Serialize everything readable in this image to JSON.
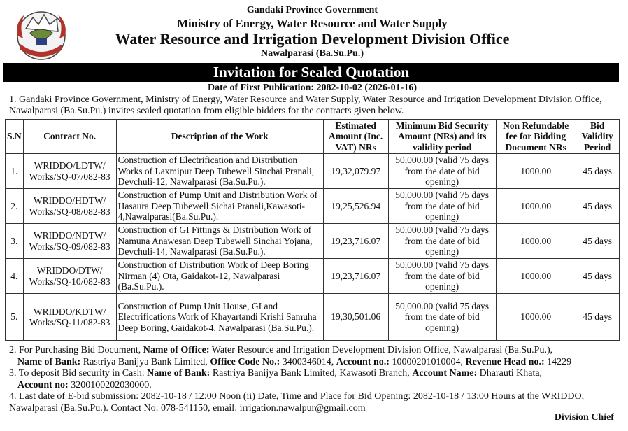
{
  "header": {
    "gov": "Gandaki Province Government",
    "ministry": "Ministry of Energy, Water Resource and Water Supply",
    "office": "Water Resource and Irrigation Development Division Office",
    "location": "Nawalparasi (Ba.Su.Pu.)"
  },
  "banner": "Invitation for Sealed Quotation",
  "publication": "Date of First Publication: 2082-10-02 (2026-01-16)",
  "intro": "1. Gandaki Province Government, Ministry of Energy, Water Resource and Water Supply, Water Resource and Irrigation Development Division Office, Nawalparasi (Ba.Su.Pu.) invites sealed quotation from eligible bidders for the contracts given below.",
  "table": {
    "headers": {
      "sn": "S.N",
      "contract": "Contract No.",
      "description": "Description of the Work",
      "amount": "Estimated Amount (Inc. VAT) NRs",
      "security": "Minimum Bid Security Amount (NRs) and its validity period",
      "fee": "Non Refundable fee for Bidding Document NRs",
      "validity": "Bid Validity Period"
    },
    "rows": [
      {
        "sn": "1.",
        "contract": "WRIDDO/LDTW/ Works/SQ-07/082-83",
        "description": "Construction of Electrification and Distribution Works of Laxmipur Deep Tubewell Sinchai Pranali, Devchuli-12, Nawalparasi (Ba.Su.Pu.).",
        "amount": "19,32,079.97",
        "security": "50,000.00 (valid 75 days from the date of bid opening)",
        "fee": "1000.00",
        "validity": "45 days"
      },
      {
        "sn": "2.",
        "contract": "WRIDDO/HDTW/ Works/SQ-08/082-83",
        "description": "Construction of Pump Unit and Distribution Work of Hasaura Deep Tubewell Sichai Pranali,Kawasoti-4,Nawalparasi(Ba.Su.Pu.).",
        "amount": "19,25,526.94",
        "security": "50,000.00 (valid 75 days from the date of bid opening)",
        "fee": "1000.00",
        "validity": "45 days"
      },
      {
        "sn": "3.",
        "contract": "WRIDDO/NDTW/ Works/SQ-09/082-83",
        "description": "Construction of GI Fittings & Distribution Work of Namuna Anawesan Deep Tubewell Sinchai Yojana, Devchuli-14, Nawalparasi (Ba.Su.Pu.).",
        "amount": "19,23,716.07",
        "security": "50,000.00 (valid 75 days from the date of bid opening)",
        "fee": "1000.00",
        "validity": "45 days"
      },
      {
        "sn": "4.",
        "contract": "WRIDDO/DTW/ Works/SQ-10/082-83",
        "description": "Construction of Distribution Work of Deep Boring Nirman (4) Ota, Gaidakot-12, Nawalparasi (Ba.Su.Pu.).",
        "amount": "19,23,716.07",
        "security": "50,000.00 (valid 75 days from the date of bid opening)",
        "fee": "1000.00",
        "validity": "45 days"
      },
      {
        "sn": "5.",
        "contract": "WRIDDO/KDTW/ Works/SQ-11/082-83",
        "description": "Construction of Pump Unit House, GI and Electrifications Work of Khayartandi Krishi Samuha Deep Boring, Gaidakot-4, Nawalparasi (Ba.Su.Pu.).",
        "amount": "19,30,501.06",
        "security": "50,000.00 (valid 75 days from the date of bid opening)",
        "fee": "1000.00",
        "validity": "45 days"
      }
    ]
  },
  "notes": {
    "n2_prefix": "2. For Purchasing Bid Document, ",
    "n2_office_label": "Name of Office:",
    "n2_office": " Water Resource and Irrigation Development Division Office, Nawalparasi (Ba.Su.Pu.),",
    "n2_bank_label": "Name of Bank:",
    "n2_bank": " Rastriya Banijya Bank Limited, ",
    "n2_code_label": "Office Code No.:",
    "n2_code": " 3400346014, ",
    "n2_account_label": "Account no.:",
    "n2_account": " 10000201010004, ",
    "n2_revenue_label": "Revenue Head no.:",
    "n2_revenue": " 14229",
    "n3_prefix": "3. To deposit Bid security in Cash: ",
    "n3_bank_label": "Name of Bank:",
    "n3_bank": " Rastriya Banijya Bank Limited, Kawasoti Branch, ",
    "n3_accname_label": "Account Name:",
    "n3_accname": " Dharauti Khata,",
    "n3_accno_label": "Account no:",
    "n3_accno": " 3200100202030000.",
    "n4": "4. Last date of E-bid submission: 2082-10-18 / 12:00 Noon (ii) Date, Time and Place for Bid Opening: 2082-10-18 / 13:00 Hours at the WRIDDO, Nawalparasi (Ba.Su.Pu.). Contact No: 078-541150, email: irrigation.nawalpur@gmail.com"
  },
  "signature": "Division Chief",
  "colors": {
    "banner_bg": "#000000",
    "emblem_red": "#b0342c",
    "emblem_blue": "#2d3f7c"
  }
}
